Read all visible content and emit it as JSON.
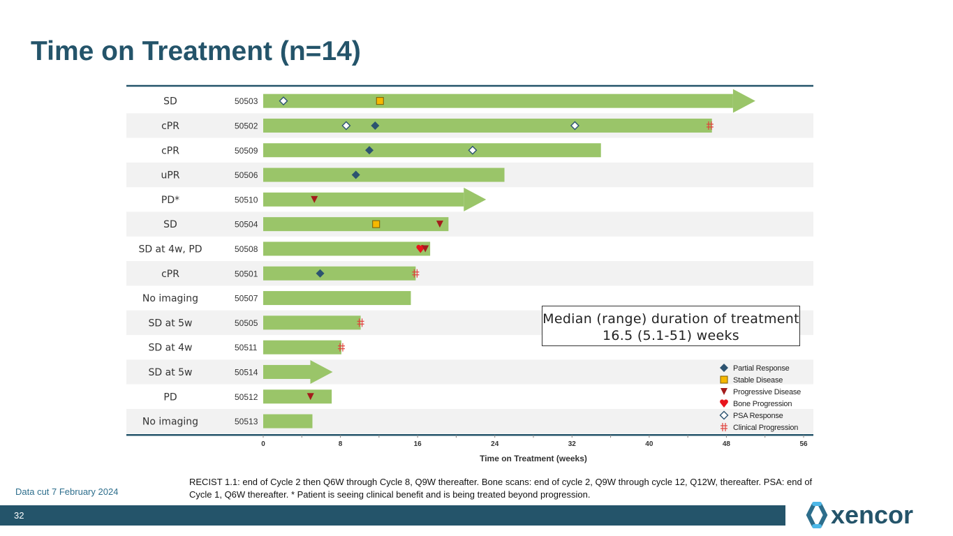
{
  "page": {
    "title": "Time on Treatment (n=14)",
    "footnote": "RECIST 1.1: end of Cycle 2 then Q6W through Cycle 8, Q9W thereafter. Bone scans: end of cycle 2, Q9W through cycle 12, Q12W, thereafter. PSA: end of Cycle 1, Q6W thereafter. * Patient is seeing clinical benefit and is being treated beyond progression.",
    "data_cut": "Data cut 7 February 2024",
    "page_number": "32",
    "logo_text": "xencor",
    "median_line1": "Median (range) duration of treatment",
    "median_line2": "16.5 (5.1-51) weeks"
  },
  "colors": {
    "title": "#24546a",
    "bar": "#9ac569",
    "row_stripe": "#f2f2f2",
    "partial_response": "#2c5370",
    "stable_disease": "#f6b800",
    "progressive_disease": "#a31c1c",
    "bone_progression": "#e8141d",
    "psa_response": "#2c5370",
    "clinical_progression": "#e0403a",
    "footer": "#24546a"
  },
  "chart_data": {
    "type": "swimmer",
    "xlabel": "Time on Treatment (weeks)",
    "xlim": [
      0,
      56
    ],
    "xticks": [
      0,
      8,
      16,
      24,
      32,
      40,
      48,
      56
    ],
    "legend": [
      {
        "key": "PR",
        "label": "Partial Response",
        "marker": "diamond-filled"
      },
      {
        "key": "SD",
        "label": "Stable Disease",
        "marker": "square"
      },
      {
        "key": "PD",
        "label": "Progressive Disease",
        "marker": "triangle-down"
      },
      {
        "key": "BP",
        "label": "Bone Progression",
        "marker": "heart"
      },
      {
        "key": "PSA",
        "label": "PSA Response",
        "marker": "diamond-open"
      },
      {
        "key": "CP",
        "label": "Clinical Progression",
        "marker": "hash"
      }
    ],
    "patients": [
      {
        "response": "SD",
        "id": "50503",
        "duration": 51,
        "ongoing": true,
        "events": [
          {
            "type": "PSA",
            "week": 2.1
          },
          {
            "type": "SD",
            "week": 12.1
          }
        ]
      },
      {
        "response": "cPR",
        "id": "50502",
        "duration": 46.5,
        "ongoing": false,
        "events": [
          {
            "type": "PSA",
            "week": 8.6
          },
          {
            "type": "PR",
            "week": 11.6
          },
          {
            "type": "PSA",
            "week": 32.3
          },
          {
            "type": "CP",
            "week": 46.3
          }
        ]
      },
      {
        "response": "cPR",
        "id": "50509",
        "duration": 35,
        "ongoing": false,
        "events": [
          {
            "type": "PR",
            "week": 11
          },
          {
            "type": "PSA",
            "week": 21.7
          }
        ]
      },
      {
        "response": "uPR",
        "id": "50506",
        "duration": 25,
        "ongoing": false,
        "events": [
          {
            "type": "PR",
            "week": 9.6
          }
        ]
      },
      {
        "response": "PD*",
        "id": "50510",
        "duration": 23.1,
        "ongoing": true,
        "events": [
          {
            "type": "PD",
            "week": 5.3
          }
        ]
      },
      {
        "response": "SD",
        "id": "50504",
        "duration": 19.2,
        "ongoing": false,
        "events": [
          {
            "type": "SD",
            "week": 11.7
          },
          {
            "type": "PD",
            "week": 18.3
          }
        ]
      },
      {
        "response": "SD at 4w, PD",
        "id": "50508",
        "duration": 17.3,
        "ongoing": false,
        "events": [
          {
            "type": "BP",
            "week": 16.3
          },
          {
            "type": "PD",
            "week": 16.8
          }
        ]
      },
      {
        "response": "cPR",
        "id": "50501",
        "duration": 15.8,
        "ongoing": false,
        "events": [
          {
            "type": "PR",
            "week": 5.9
          },
          {
            "type": "CP",
            "week": 15.8
          }
        ]
      },
      {
        "response": "No imaging",
        "id": "50507",
        "duration": 15.3,
        "ongoing": false,
        "events": []
      },
      {
        "response": "SD at 5w",
        "id": "50505",
        "duration": 10.1,
        "ongoing": false,
        "events": [
          {
            "type": "CP",
            "week": 10.1
          }
        ]
      },
      {
        "response": "SD at 4w",
        "id": "50511",
        "duration": 8.1,
        "ongoing": false,
        "events": [
          {
            "type": "CP",
            "week": 8.1
          }
        ]
      },
      {
        "response": "SD at 5w",
        "id": "50514",
        "duration": 7.2,
        "ongoing": true,
        "events": []
      },
      {
        "response": "PD",
        "id": "50512",
        "duration": 7.1,
        "ongoing": false,
        "events": [
          {
            "type": "PD",
            "week": 4.9
          }
        ]
      },
      {
        "response": "No imaging",
        "id": "50513",
        "duration": 5.1,
        "ongoing": false,
        "events": []
      }
    ]
  }
}
